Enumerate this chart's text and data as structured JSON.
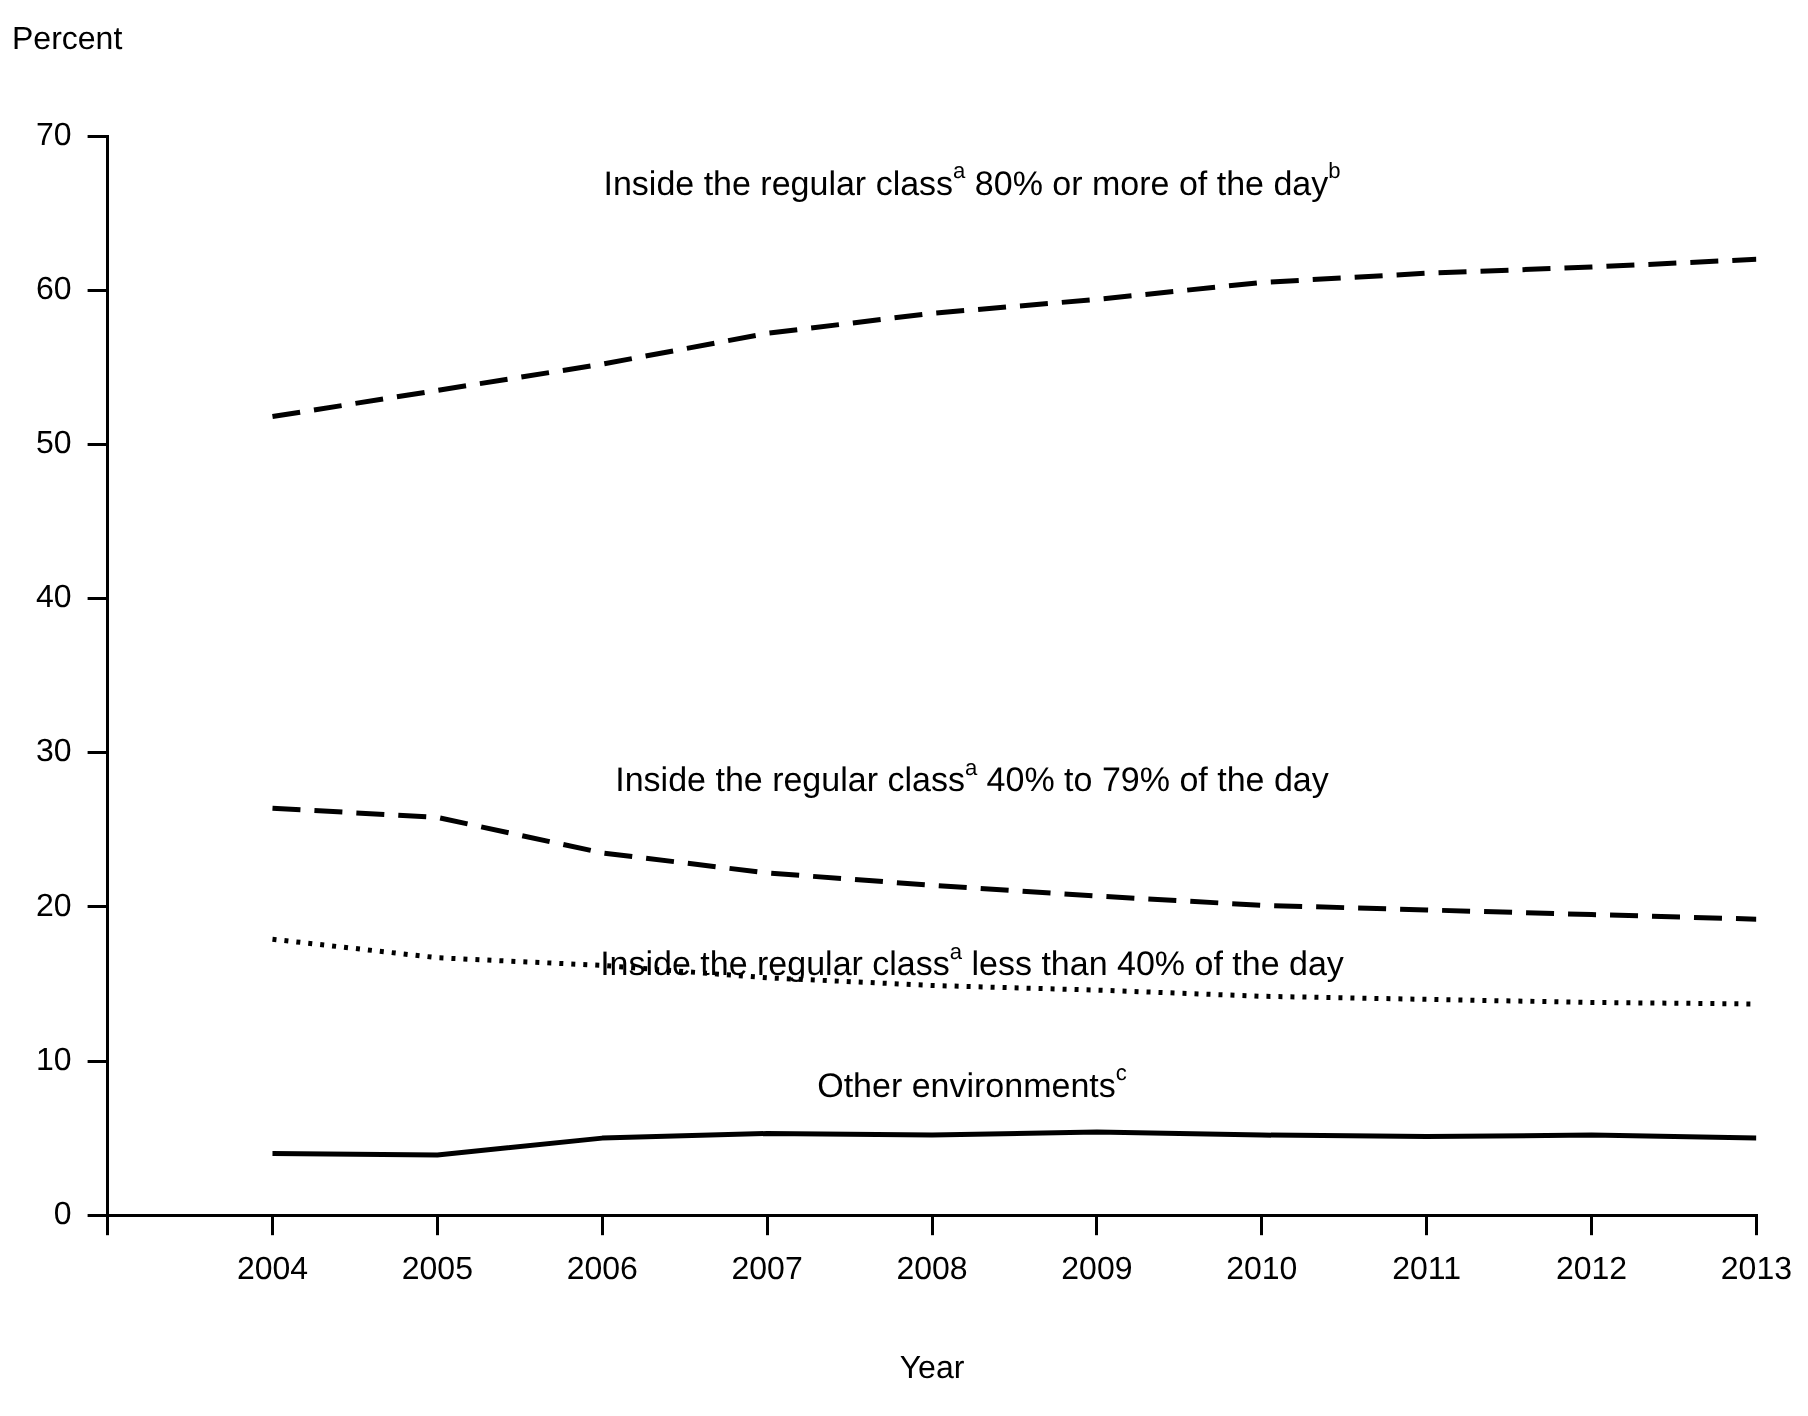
{
  "chart_data": {
    "type": "line",
    "ylabel": "Percent",
    "xlabel": "Year",
    "x": [
      2004,
      2005,
      2006,
      2007,
      2008,
      2009,
      2010,
      2011,
      2012,
      2013
    ],
    "xlim": [
      2003,
      2013
    ],
    "xticks": [
      {
        "value": 2003,
        "label": null
      },
      2004,
      2005,
      2006,
      2007,
      2008,
      2009,
      2010,
      2011,
      2012,
      2013
    ],
    "ylim": [
      0,
      70
    ],
    "yticks": [
      0,
      10,
      20,
      30,
      40,
      50,
      60,
      70
    ],
    "grid": false,
    "legend": false,
    "marker": "none",
    "series": [
      {
        "name": "Inside the regular class$^{a}$ 80% or more of the day$^{b}$",
        "color": "#000000",
        "line_style": "dashed",
        "values": [
          51.8,
          53.5,
          55.2,
          57.2,
          58.5,
          59.4,
          60.5,
          61.1,
          61.5,
          62.0
        ]
      },
      {
        "name": "Inside the regular class$^{a}$ 40% to 79% of the day",
        "color": "#000000",
        "line_style": "dashed",
        "values": [
          26.4,
          25.8,
          23.5,
          22.2,
          21.4,
          20.7,
          20.1,
          19.8,
          19.5,
          19.2
        ]
      },
      {
        "name": "Inside the regular class$^{a}$ less than 40% of the day",
        "color": "#000000",
        "line_style": "dotted",
        "values": [
          17.9,
          16.7,
          16.2,
          15.4,
          14.9,
          14.6,
          14.2,
          14.0,
          13.8,
          13.7
        ]
      },
      {
        "name": "Other environments$^{c}$",
        "color": "#000000",
        "line_style": "solid",
        "values": [
          4.0,
          3.9,
          5.0,
          5.3,
          5.2,
          5.4,
          5.2,
          5.1,
          5.2,
          5.0
        ]
      }
    ]
  }
}
